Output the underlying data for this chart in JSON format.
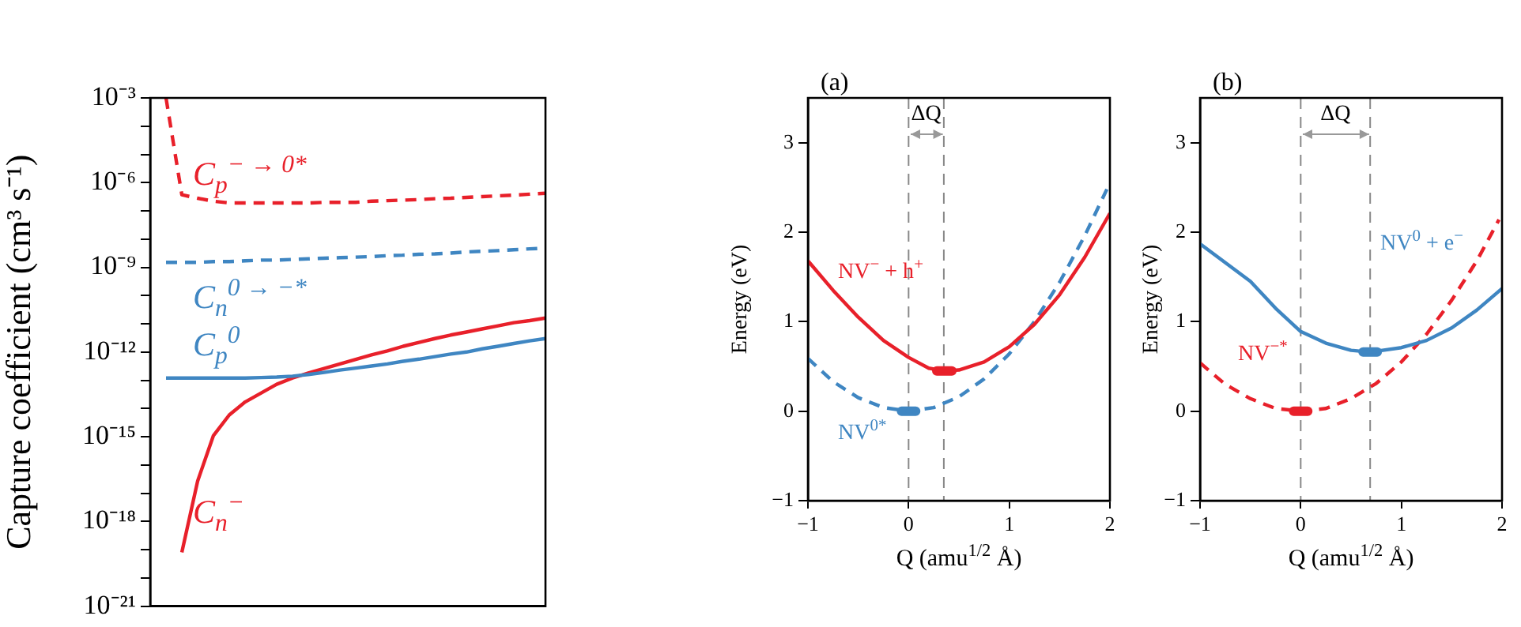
{
  "chart_data": [
    {
      "type": "line",
      "ylabel": "Capture coefficient (cm³ s⁻¹)",
      "log": "y",
      "marker": "none",
      "tick_labels": "y",
      "categories": [
        null,
        null,
        null,
        null,
        null,
        null,
        null,
        null,
        null,
        null,
        null,
        null,
        null,
        null,
        null,
        null,
        null,
        null,
        null,
        null,
        null,
        null,
        null,
        null,
        null,
        null
      ],
      "ylim": [
        1e-21,
        0.001
      ],
      "yticks": [
        {
          "value": 0.001,
          "label": "10⁻³"
        },
        {
          "value": 0.0001,
          "label": null
        },
        {
          "value": 1e-05,
          "label": null
        },
        {
          "value": 1e-06,
          "label": "10⁻⁶"
        },
        {
          "value": 1e-07,
          "label": null
        },
        {
          "value": 1e-08,
          "label": null
        },
        {
          "value": 1e-09,
          "label": "10⁻⁹"
        },
        {
          "value": 1e-10,
          "label": null
        },
        {
          "value": 1e-11,
          "label": null
        },
        {
          "value": 1e-12,
          "label": "10⁻¹²"
        },
        {
          "value": 1e-13,
          "label": null
        },
        {
          "value": 1e-14,
          "label": null
        },
        {
          "value": 1e-15,
          "label": "10⁻¹⁵"
        },
        {
          "value": 1e-16,
          "label": null
        },
        {
          "value": 1e-17,
          "label": null
        },
        {
          "value": 1e-18,
          "label": "10⁻¹⁸"
        },
        {
          "value": 1e-19,
          "label": null
        },
        {
          "value": 1e-20,
          "label": null
        },
        {
          "value": 1e-21,
          "label": "10⁻²¹"
        }
      ],
      "series": [
        {
          "name": "C$_{p}$$^{− → 0*}$",
          "color": "#e8202a",
          "line_style": "dashed",
          "values": [
            null,
            0.001,
            3.7e-07,
            2.8e-07,
            2.2e-07,
            1.9e-07,
            1.9e-07,
            1.9e-07,
            1.9e-07,
            1.9e-07,
            1.9e-07,
            2e-07,
            2e-07,
            2e-07,
            2.2e-07,
            2.3e-07,
            2.4e-07,
            2.5e-07,
            2.7e-07,
            2.8e-07,
            3e-07,
            3.2e-07,
            3.4e-07,
            3.6e-07,
            3.9e-07,
            4.2e-07
          ]
        },
        {
          "name": "C$_{n}$$^{0 → −*}$",
          "color": "#3f86c2",
          "line_style": "dashed",
          "values": [
            null,
            1.5e-09,
            1.5e-09,
            1.5e-09,
            1.6e-09,
            1.6e-09,
            1.7e-09,
            1.8e-09,
            1.8e-09,
            1.9e-09,
            2e-09,
            2.1e-09,
            2.2e-09,
            2.3e-09,
            2.4e-09,
            2.6e-09,
            2.7e-09,
            2.9e-09,
            3e-09,
            3.2e-09,
            3.5e-09,
            3.7e-09,
            3.9e-09,
            4.2e-09,
            4.5e-09,
            4.8e-09
          ]
        },
        {
          "name": "C$_{p}$$^{0}$",
          "color": "#3f86c2",
          "line_style": "solid",
          "values": [
            null,
            1.2e-13,
            1.2e-13,
            1.2e-13,
            1.2e-13,
            1.2e-13,
            1.2e-13,
            1.25e-13,
            1.3e-13,
            1.4e-13,
            1.6e-13,
            1.9e-13,
            2.3e-13,
            2.7e-13,
            3.2e-13,
            3.8e-13,
            4.7e-13,
            5.6e-13,
            6.9e-13,
            8.5e-13,
            1e-12,
            1.3e-12,
            1.6e-12,
            2e-12,
            2.5e-12,
            3e-12
          ]
        },
        {
          "name": "C$_{n}$$^{−}$",
          "color": "#e8202a",
          "line_style": "solid",
          "values": [
            null,
            null,
            8e-20,
            2.7e-17,
            1.1e-15,
            5.9e-15,
            1.7e-14,
            3.5e-14,
            7.2e-14,
            1.2e-13,
            1.8e-13,
            2.6e-13,
            3.8e-13,
            5.5e-13,
            7.9e-13,
            1.1e-12,
            1.6e-12,
            2.2e-12,
            3e-12,
            4e-12,
            5.1e-12,
            6.6e-12,
            8.5e-12,
            1.1e-11,
            1.3e-11,
            1.6e-11
          ]
        }
      ]
    },
    {
      "type": "line",
      "title": "(a)",
      "xlabel": "Q (amu$^{1/2}$ Å)",
      "ylabel": "Energy (eV)",
      "marker": "none",
      "xlim": [
        -1,
        2
      ],
      "xticks": [
        {
          "value": -1,
          "label": "−1"
        },
        0,
        1,
        2
      ],
      "ylim": [
        -1,
        3.5
      ],
      "yticks": [
        {
          "value": -1,
          "label": "−1"
        },
        0,
        1,
        2,
        3
      ],
      "ref_lines": [
        {
          "axis": "x",
          "value": 0,
          "color": "#888888",
          "line_style": "dashed"
        },
        {
          "axis": "x",
          "value": 0.35,
          "color": "#888888",
          "line_style": "dashed"
        }
      ],
      "annotations": [
        "ΔQ"
      ],
      "series": [
        {
          "name": "NV$^{−}$ + h$^{+}$",
          "color": "#e8202a",
          "line_style": "solid",
          "x": [
            -1,
            -0.75,
            -0.5,
            -0.25,
            0,
            0.2,
            0.35,
            0.5,
            0.75,
            1,
            1.25,
            1.5,
            1.75,
            2
          ],
          "values": [
            1.68,
            1.35,
            1.05,
            0.79,
            0.6,
            0.48,
            0.45,
            0.46,
            0.55,
            0.72,
            0.97,
            1.3,
            1.72,
            2.21
          ]
        },
        {
          "name": "NV$^{0*}$",
          "color": "#3f86c2",
          "line_style": "dashed",
          "x": [
            -1,
            -0.75,
            -0.5,
            -0.25,
            0,
            0.25,
            0.5,
            0.75,
            1,
            1.25,
            1.5,
            1.75,
            1.97
          ],
          "values": [
            0.59,
            0.33,
            0.15,
            0.04,
            0,
            0.04,
            0.16,
            0.36,
            0.64,
            1.0,
            1.44,
            1.96,
            2.48
          ]
        },
        {
          "color": "#e8202a",
          "line_style": "solid",
          "x": [
            0.28,
            0.43
          ],
          "values": [
            0.45,
            0.45
          ]
        },
        {
          "color": "#3f86c2",
          "line_style": "solid",
          "x": [
            -0.07,
            0.07
          ],
          "values": [
            0,
            0
          ]
        }
      ]
    },
    {
      "type": "line",
      "title": "(b)",
      "xlabel": "Q (amu$^{1/2}$ Å)",
      "ylabel": "Energy (eV)",
      "marker": "none",
      "xlim": [
        -1,
        2
      ],
      "xticks": [
        {
          "value": -1,
          "label": "−1"
        },
        0,
        1,
        2
      ],
      "ylim": [
        -1,
        3.5
      ],
      "yticks": [
        {
          "value": -1,
          "label": "−1"
        },
        0,
        1,
        2,
        3
      ],
      "ref_lines": [
        {
          "axis": "x",
          "value": 0,
          "color": "#888888",
          "line_style": "dashed"
        },
        {
          "axis": "x",
          "value": 0.69,
          "color": "#888888",
          "line_style": "dashed"
        }
      ],
      "annotations": [
        "ΔQ"
      ],
      "series": [
        {
          "name": "NV$^{0}$ + e$^{−}$",
          "color": "#3f86c2",
          "line_style": "solid",
          "x": [
            -1,
            -0.75,
            -0.5,
            -0.25,
            0,
            0.25,
            0.5,
            0.69,
            1,
            1.25,
            1.5,
            1.75,
            2
          ],
          "values": [
            1.87,
            1.66,
            1.45,
            1.15,
            0.89,
            0.76,
            0.68,
            0.66,
            0.71,
            0.79,
            0.93,
            1.13,
            1.37
          ]
        },
        {
          "name": "NV$^{−*}$",
          "color": "#e8202a",
          "line_style": "dashed",
          "x": [
            -1,
            -0.75,
            -0.5,
            -0.25,
            0,
            0.25,
            0.5,
            0.75,
            1,
            1.25,
            1.5,
            1.75,
            1.97
          ],
          "values": [
            0.54,
            0.3,
            0.14,
            0.03,
            0,
            0.03,
            0.14,
            0.31,
            0.55,
            0.86,
            1.24,
            1.68,
            2.14
          ]
        },
        {
          "color": "#3f86c2",
          "line_style": "solid",
          "x": [
            0.62,
            0.76
          ],
          "values": [
            0.66,
            0.66
          ]
        },
        {
          "color": "#e8202a",
          "line_style": "solid",
          "x": [
            -0.07,
            0.07
          ],
          "values": [
            0,
            0
          ]
        }
      ]
    }
  ]
}
